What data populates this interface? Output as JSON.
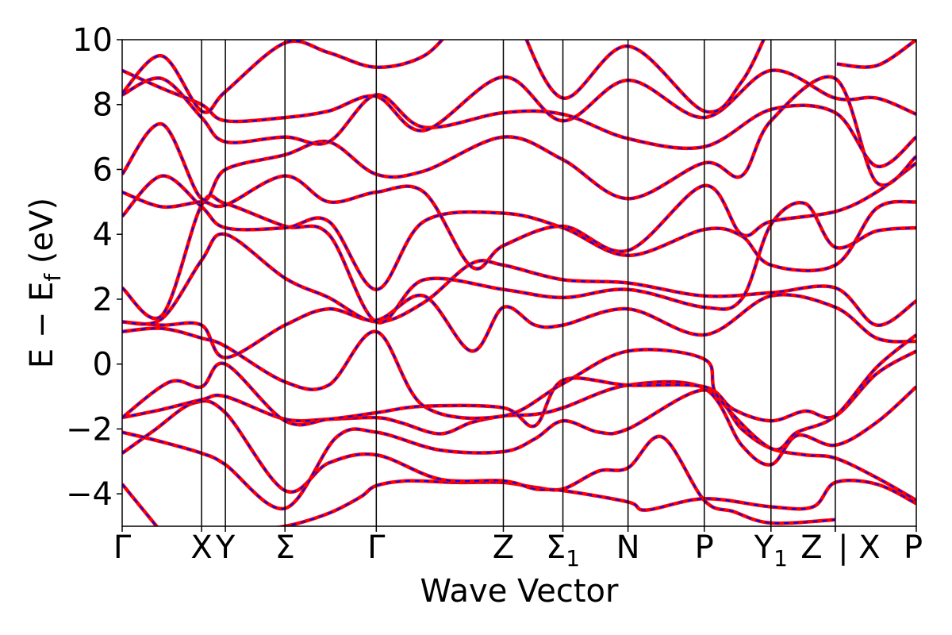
{
  "chart_data": {
    "type": "line",
    "title": "",
    "xlabel": "Wave Vector",
    "ylabel_main": "E − E",
    "ylabel_sub": "f",
    "ylabel_unit": " (eV)",
    "ylim": [
      -5,
      10
    ],
    "yticks": [
      -4,
      -2,
      0,
      2,
      4,
      6,
      8,
      10
    ],
    "ytick_labels": [
      "−4",
      "−2",
      "0",
      "2",
      "4",
      "6",
      "8",
      "10"
    ],
    "xlim": [
      0,
      10
    ],
    "kpoints": [
      {
        "label": "Γ",
        "sub": "",
        "x": 0.0
      },
      {
        "label": "X",
        "sub": "",
        "x": 1.0
      },
      {
        "label": "Y",
        "sub": "",
        "x": 1.3
      },
      {
        "label": "Σ",
        "sub": "",
        "x": 2.05
      },
      {
        "label": "Γ",
        "sub": "",
        "x": 3.2
      },
      {
        "label": "Z",
        "sub": "",
        "x": 4.8
      },
      {
        "label": "Σ",
        "sub": "1",
        "x": 5.55
      },
      {
        "label": "N",
        "sub": "",
        "x": 6.37
      },
      {
        "label": "P",
        "sub": "",
        "x": 7.33
      },
      {
        "label": "Y",
        "sub": "1",
        "x": 8.17
      },
      {
        "label": "Z",
        "sub": "",
        "x": 8.98
      },
      {
        "label": "| X",
        "sub": "",
        "x": 8.98
      },
      {
        "label": "P",
        "sub": "",
        "x": 10.0
      }
    ],
    "series_colors": {
      "reference": "#ff0000",
      "overlay": "#0000ff"
    },
    "bands": [
      [
        [
          0,
          -3.7
        ],
        [
          0.5,
          -5.2
        ]
      ],
      [
        [
          1.3,
          -5.2
        ],
        [
          2.05,
          -5.0
        ],
        [
          2.6,
          -4.6
        ],
        [
          3.0,
          -4.1
        ],
        [
          3.2,
          -3.75
        ],
        [
          3.6,
          -3.6
        ],
        [
          4.2,
          -3.65
        ],
        [
          4.8,
          -3.65
        ],
        [
          5.2,
          -3.8
        ],
        [
          5.55,
          -3.85
        ],
        [
          6.0,
          -3.3
        ],
        [
          6.37,
          -3.2
        ],
        [
          6.8,
          -2.25
        ],
        [
          7.33,
          -4.2
        ],
        [
          7.7,
          -4.55
        ],
        [
          8.17,
          -4.9
        ],
        [
          8.98,
          -4.8
        ]
      ],
      [
        [
          0,
          -2.75
        ],
        [
          0.4,
          -2.05
        ],
        [
          0.9,
          -1.2
        ],
        [
          1.3,
          -1.5
        ],
        [
          2.05,
          -3.9
        ],
        [
          2.6,
          -3.05
        ],
        [
          3.2,
          -2.8
        ],
        [
          4.0,
          -3.55
        ],
        [
          4.8,
          -3.6
        ],
        [
          5.2,
          -3.85
        ],
        [
          5.55,
          -3.9
        ],
        [
          6.37,
          -4.25
        ],
        [
          6.6,
          -4.5
        ],
        [
          7.33,
          -4.15
        ],
        [
          8.17,
          -4.4
        ],
        [
          8.7,
          -4.4
        ],
        [
          8.98,
          -3.65
        ],
        [
          9.5,
          -3.7
        ],
        [
          10.0,
          -4.3
        ]
      ],
      [
        [
          0,
          -2.1
        ],
        [
          0.5,
          -2.4
        ],
        [
          1.0,
          -2.75
        ],
        [
          1.3,
          -3.1
        ],
        [
          2.05,
          -4.45
        ],
        [
          2.7,
          -2.25
        ],
        [
          3.2,
          -2.1
        ],
        [
          4.0,
          -2.65
        ],
        [
          4.8,
          -2.7
        ],
        [
          5.2,
          -2.3
        ],
        [
          5.55,
          -1.75
        ],
        [
          6.0,
          -2.1
        ],
        [
          6.37,
          -2.0
        ],
        [
          7.33,
          -0.8
        ],
        [
          7.8,
          -2.0
        ],
        [
          8.17,
          -2.6
        ],
        [
          8.6,
          -2.8
        ],
        [
          8.98,
          -2.9
        ],
        [
          9.5,
          -3.5
        ],
        [
          10.0,
          -4.2
        ]
      ],
      [
        [
          0,
          -1.65
        ],
        [
          0.5,
          -1.4
        ],
        [
          1.0,
          -1.1
        ],
        [
          1.3,
          -1.0
        ],
        [
          2.05,
          -1.7
        ],
        [
          2.6,
          -1.7
        ],
        [
          3.2,
          -1.65
        ],
        [
          3.5,
          -1.8
        ],
        [
          4.0,
          -2.15
        ],
        [
          4.4,
          -1.8
        ],
        [
          4.8,
          -1.6
        ],
        [
          5.2,
          -1.55
        ],
        [
          5.55,
          -1.35
        ],
        [
          6.37,
          -0.65
        ],
        [
          7.33,
          -0.75
        ],
        [
          7.8,
          -2.5
        ],
        [
          8.17,
          -3.1
        ],
        [
          8.5,
          -2.2
        ],
        [
          8.98,
          -2.5
        ],
        [
          9.5,
          -1.8
        ],
        [
          10.0,
          -0.7
        ]
      ],
      [
        [
          0,
          -1.65
        ],
        [
          0.6,
          -0.55
        ],
        [
          1.0,
          -0.7
        ],
        [
          1.3,
          0.0
        ],
        [
          2.05,
          -1.75
        ],
        [
          2.6,
          -1.7
        ],
        [
          3.2,
          -1.5
        ],
        [
          3.8,
          -1.3
        ],
        [
          4.8,
          -1.35
        ],
        [
          5.2,
          -1.9
        ],
        [
          5.55,
          -0.5
        ],
        [
          6.37,
          -0.65
        ],
        [
          7.33,
          -0.7
        ],
        [
          7.7,
          -1.4
        ],
        [
          8.17,
          -1.75
        ],
        [
          8.6,
          -1.45
        ],
        [
          8.98,
          -1.6
        ],
        [
          9.5,
          -0.3
        ],
        [
          10.0,
          0.4
        ]
      ],
      [
        [
          0,
          1.0
        ],
        [
          0.5,
          1.1
        ],
        [
          1.0,
          0.8
        ],
        [
          1.3,
          0.55
        ],
        [
          2.05,
          -0.55
        ],
        [
          2.6,
          -0.65
        ],
        [
          3.2,
          1.0
        ],
        [
          3.8,
          -1.3
        ],
        [
          4.8,
          -1.6
        ],
        [
          5.55,
          -0.6
        ],
        [
          6.37,
          0.4
        ],
        [
          7.33,
          0.15
        ],
        [
          7.5,
          -1.0
        ],
        [
          8.17,
          -2.6
        ],
        [
          8.5,
          -2.1
        ],
        [
          8.98,
          -1.6
        ],
        [
          9.5,
          -0.1
        ],
        [
          10.0,
          0.9
        ]
      ],
      [
        [
          0,
          1.3
        ],
        [
          0.5,
          1.2
        ],
        [
          1.0,
          1.2
        ],
        [
          1.3,
          0.2
        ],
        [
          2.05,
          1.2
        ],
        [
          2.6,
          1.7
        ],
        [
          3.2,
          1.35
        ],
        [
          3.8,
          2.1
        ],
        [
          4.4,
          0.4
        ],
        [
          4.8,
          1.75
        ],
        [
          5.2,
          1.2
        ],
        [
          5.55,
          1.2
        ],
        [
          6.37,
          1.7
        ],
        [
          7.33,
          0.9
        ],
        [
          8.17,
          2.1
        ],
        [
          8.98,
          1.75
        ],
        [
          9.5,
          0.8
        ],
        [
          10.0,
          0.7
        ]
      ],
      [
        [
          0,
          1.3
        ],
        [
          0.5,
          1.4
        ],
        [
          1.0,
          3.2
        ],
        [
          1.3,
          4.0
        ],
        [
          2.05,
          2.65
        ],
        [
          2.6,
          2.05
        ],
        [
          3.2,
          1.3
        ],
        [
          3.8,
          1.9
        ],
        [
          4.4,
          3.1
        ],
        [
          4.8,
          3.05
        ],
        [
          5.55,
          2.6
        ],
        [
          6.37,
          2.5
        ],
        [
          7.33,
          2.1
        ],
        [
          8.17,
          2.2
        ],
        [
          8.98,
          2.35
        ],
        [
          9.5,
          1.2
        ],
        [
          10.0,
          1.95
        ]
      ],
      [
        [
          0,
          2.35
        ],
        [
          0.5,
          1.5
        ],
        [
          1.0,
          4.9
        ],
        [
          1.3,
          4.95
        ],
        [
          2.05,
          4.25
        ],
        [
          2.6,
          4.0
        ],
        [
          3.2,
          1.3
        ],
        [
          3.8,
          2.6
        ],
        [
          4.8,
          2.3
        ],
        [
          5.55,
          2.05
        ],
        [
          6.37,
          2.3
        ],
        [
          7.33,
          1.75
        ],
        [
          7.8,
          2.0
        ],
        [
          8.17,
          4.3
        ],
        [
          8.6,
          4.95
        ],
        [
          8.98,
          3.6
        ],
        [
          9.5,
          4.1
        ],
        [
          10.0,
          4.2
        ]
      ],
      [
        [
          0,
          4.55
        ],
        [
          0.5,
          5.8
        ],
        [
          1.0,
          4.85
        ],
        [
          1.3,
          4.2
        ],
        [
          2.05,
          4.2
        ],
        [
          2.6,
          4.4
        ],
        [
          3.2,
          2.3
        ],
        [
          3.8,
          4.4
        ],
        [
          4.8,
          4.65
        ],
        [
          5.55,
          4.2
        ],
        [
          6.37,
          3.35
        ],
        [
          7.33,
          4.15
        ],
        [
          7.8,
          3.95
        ],
        [
          8.17,
          3.05
        ],
        [
          8.98,
          3.05
        ],
        [
          9.5,
          4.8
        ],
        [
          10.0,
          5.0
        ]
      ],
      [
        [
          0,
          5.3
        ],
        [
          0.5,
          4.85
        ],
        [
          1.0,
          5.0
        ],
        [
          1.3,
          4.9
        ],
        [
          2.05,
          5.8
        ],
        [
          2.6,
          5.0
        ],
        [
          3.2,
          5.3
        ],
        [
          3.8,
          5.3
        ],
        [
          4.4,
          3.0
        ],
        [
          4.8,
          3.65
        ],
        [
          5.55,
          4.25
        ],
        [
          6.37,
          3.5
        ],
        [
          7.33,
          5.5
        ],
        [
          7.8,
          4.0
        ],
        [
          8.17,
          4.4
        ],
        [
          8.98,
          4.7
        ],
        [
          9.5,
          5.3
        ],
        [
          10.0,
          6.2
        ]
      ],
      [
        [
          0,
          5.85
        ],
        [
          0.5,
          7.4
        ],
        [
          1.0,
          5.1
        ],
        [
          1.3,
          6.0
        ],
        [
          2.05,
          6.45
        ],
        [
          2.6,
          6.85
        ],
        [
          3.2,
          5.85
        ],
        [
          3.8,
          5.95
        ],
        [
          4.8,
          7.0
        ],
        [
          5.55,
          6.3
        ],
        [
          6.37,
          5.1
        ],
        [
          7.33,
          6.2
        ],
        [
          7.8,
          5.8
        ],
        [
          8.17,
          7.5
        ],
        [
          8.98,
          8.8
        ],
        [
          9.5,
          5.6
        ],
        [
          10.0,
          6.4
        ]
      ],
      [
        [
          0,
          8.3
        ],
        [
          0.5,
          8.8
        ],
        [
          1.0,
          7.6
        ],
        [
          1.3,
          6.85
        ],
        [
          2.05,
          7.0
        ],
        [
          2.6,
          6.85
        ],
        [
          3.2,
          8.3
        ],
        [
          3.8,
          7.3
        ],
        [
          4.8,
          7.75
        ],
        [
          5.55,
          7.7
        ],
        [
          6.37,
          6.95
        ],
        [
          7.33,
          6.7
        ],
        [
          8.17,
          7.85
        ],
        [
          8.98,
          7.75
        ],
        [
          9.5,
          6.1
        ],
        [
          10.0,
          7.0
        ]
      ],
      [
        [
          0,
          9.05
        ],
        [
          0.5,
          8.5
        ],
        [
          1.0,
          8.0
        ],
        [
          1.3,
          7.5
        ],
        [
          2.05,
          7.6
        ],
        [
          2.6,
          7.8
        ],
        [
          3.2,
          8.25
        ],
        [
          3.8,
          7.2
        ],
        [
          4.8,
          8.85
        ],
        [
          5.55,
          7.5
        ],
        [
          6.37,
          8.75
        ],
        [
          7.33,
          7.6
        ],
        [
          8.17,
          9.05
        ],
        [
          8.98,
          8.2
        ],
        [
          9.5,
          8.2
        ],
        [
          10.0,
          7.7
        ]
      ],
      [
        [
          0,
          8.35
        ],
        [
          0.5,
          9.5
        ],
        [
          1.0,
          7.8
        ],
        [
          1.3,
          8.4
        ],
        [
          2.05,
          9.9
        ],
        [
          2.6,
          9.6
        ],
        [
          3.2,
          9.15
        ],
        [
          3.8,
          9.5
        ],
        [
          4.2,
          10.5
        ]
      ],
      [
        [
          5.0,
          10.5
        ],
        [
          5.55,
          8.2
        ],
        [
          6.37,
          9.8
        ],
        [
          7.33,
          7.8
        ],
        [
          7.8,
          8.7
        ],
        [
          8.17,
          10.5
        ]
      ],
      [
        [
          9.0,
          9.25
        ],
        [
          9.5,
          9.2
        ],
        [
          10.0,
          10.0
        ]
      ]
    ]
  }
}
